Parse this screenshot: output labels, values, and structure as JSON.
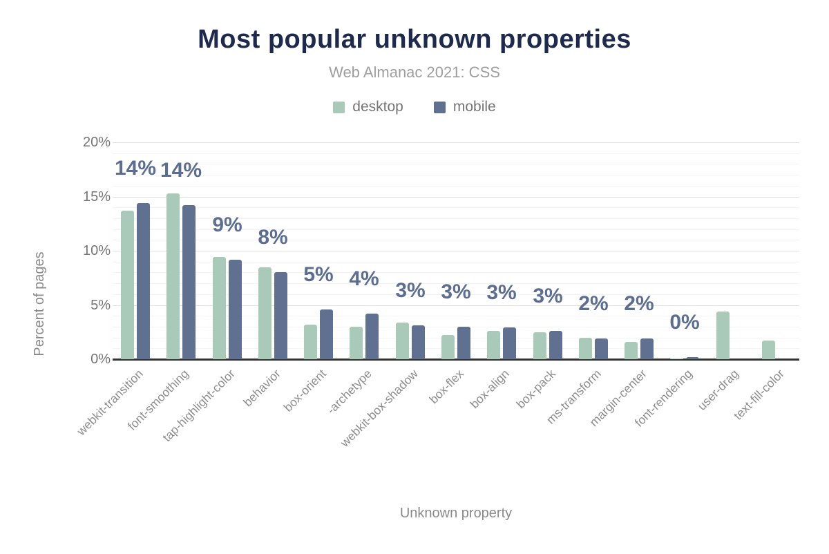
{
  "header": {
    "title": "Most popular unknown properties",
    "subtitle": "Web Almanac 2021: CSS"
  },
  "chart_data": {
    "type": "bar",
    "title": "Most popular unknown properties",
    "subtitle": "Web Almanac 2021: CSS",
    "xlabel": "Unknown property",
    "ylabel": "Percent of pages",
    "ylim": [
      0,
      20
    ],
    "yticks": [
      0,
      5,
      10,
      15,
      20
    ],
    "ytick_labels": [
      "0%",
      "5%",
      "10%",
      "15%",
      "20%"
    ],
    "grid": true,
    "legend_position": "top",
    "x_tick_rotation_deg": -45,
    "categories": [
      "webkit-transition",
      "font-smoothing",
      "tap-highlight-color",
      "behavior",
      "box-orient",
      "-archetype",
      "webkit-box-shadow",
      "box-flex",
      "box-align",
      "box-pack",
      "ms-transform",
      "margin-center",
      "font-rendering",
      "user-drag",
      "text-fill-color"
    ],
    "series": [
      {
        "name": "desktop",
        "color": "#a9cab8",
        "values": [
          13.7,
          15.3,
          9.4,
          8.5,
          3.2,
          3.0,
          3.4,
          2.2,
          2.6,
          2.5,
          2.0,
          1.6,
          0.05,
          4.4,
          1.7
        ]
      },
      {
        "name": "mobile",
        "color": "#5f7090",
        "values": [
          14.4,
          14.2,
          9.2,
          8.0,
          4.6,
          4.2,
          3.1,
          3.0,
          2.9,
          2.6,
          1.9,
          1.9,
          0.2,
          0,
          0
        ]
      }
    ],
    "value_labels": {
      "series": "mobile",
      "color": "#5b6d90",
      "labels": [
        "14%",
        "14%",
        "9%",
        "8%",
        "5%",
        "4%",
        "3%",
        "3%",
        "3%",
        "3%",
        "2%",
        "2%",
        "0%",
        "",
        ""
      ]
    },
    "colors": {
      "axis_line": "#323232",
      "grid_major": "#e2e2e2",
      "grid_minor": "#f4f4f4",
      "tick_text": "#757575",
      "axis_title_text": "#8a8a8a",
      "category_text": "#8d8d8d",
      "title_text": "#1e2a4d",
      "subtitle_text": "#9e9e9e"
    }
  }
}
